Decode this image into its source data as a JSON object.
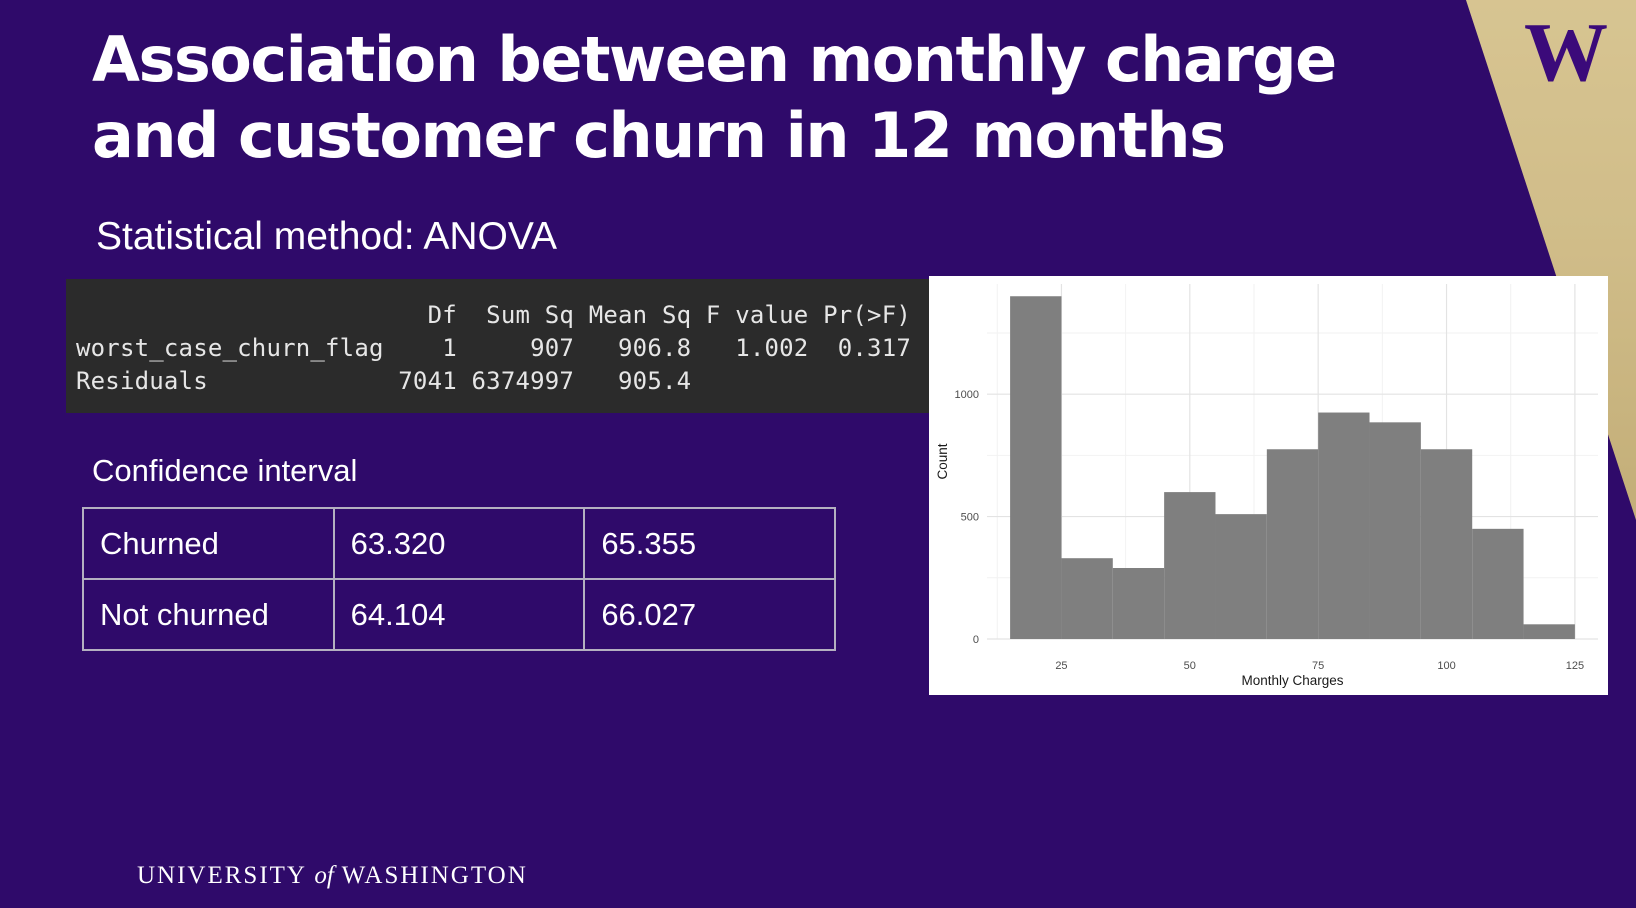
{
  "slide": {
    "title_line1": "Association between monthly charge",
    "title_line2": "and customer churn in 12 months",
    "subtitle": "Statistical method: ANOVA",
    "colors": {
      "background": "#2f0a6a",
      "accent_gold": "#d8c38c",
      "console_bg": "#2b2b2b",
      "bar": "#7f7f7f"
    }
  },
  "anova": {
    "header": "                        Df  Sum Sq Mean Sq F value Pr(>F)",
    "row1": "worst_case_churn_flag    1     907   906.8   1.002  0.317",
    "row2": "Residuals             7041 6374997   905.4"
  },
  "confidence_interval": {
    "label": "Confidence interval",
    "rows": [
      [
        "Churned",
        "63.320",
        "65.355"
      ],
      [
        "Not churned",
        "64.104",
        "66.027"
      ]
    ]
  },
  "chart_data": {
    "type": "bar",
    "title": "",
    "xlabel": "Monthly Charges",
    "ylabel": "Count",
    "bins": [
      {
        "x0": 15,
        "x1": 25,
        "count": 1400
      },
      {
        "x0": 25,
        "x1": 35,
        "count": 330
      },
      {
        "x0": 35,
        "x1": 45,
        "count": 290
      },
      {
        "x0": 45,
        "x1": 55,
        "count": 600
      },
      {
        "x0": 55,
        "x1": 65,
        "count": 510
      },
      {
        "x0": 65,
        "x1": 75,
        "count": 775
      },
      {
        "x0": 75,
        "x1": 85,
        "count": 925
      },
      {
        "x0": 85,
        "x1": 95,
        "count": 885
      },
      {
        "x0": 95,
        "x1": 105,
        "count": 775
      },
      {
        "x0": 105,
        "x1": 115,
        "count": 450
      },
      {
        "x0": 115,
        "x1": 125,
        "count": 60
      }
    ],
    "xlim": [
      15,
      125
    ],
    "ylim": [
      0,
      1400
    ],
    "xticks": [
      25,
      50,
      75,
      100,
      125
    ],
    "yticks": [
      0,
      500,
      1000
    ],
    "grid": true,
    "legend": "none"
  },
  "footer": {
    "wordmark_pre": "UNIVERSITY ",
    "wordmark_of": "of",
    "wordmark_post": " WASHINGTON"
  },
  "logo": {
    "letter": "W",
    "icon": "uw-w-logo"
  }
}
